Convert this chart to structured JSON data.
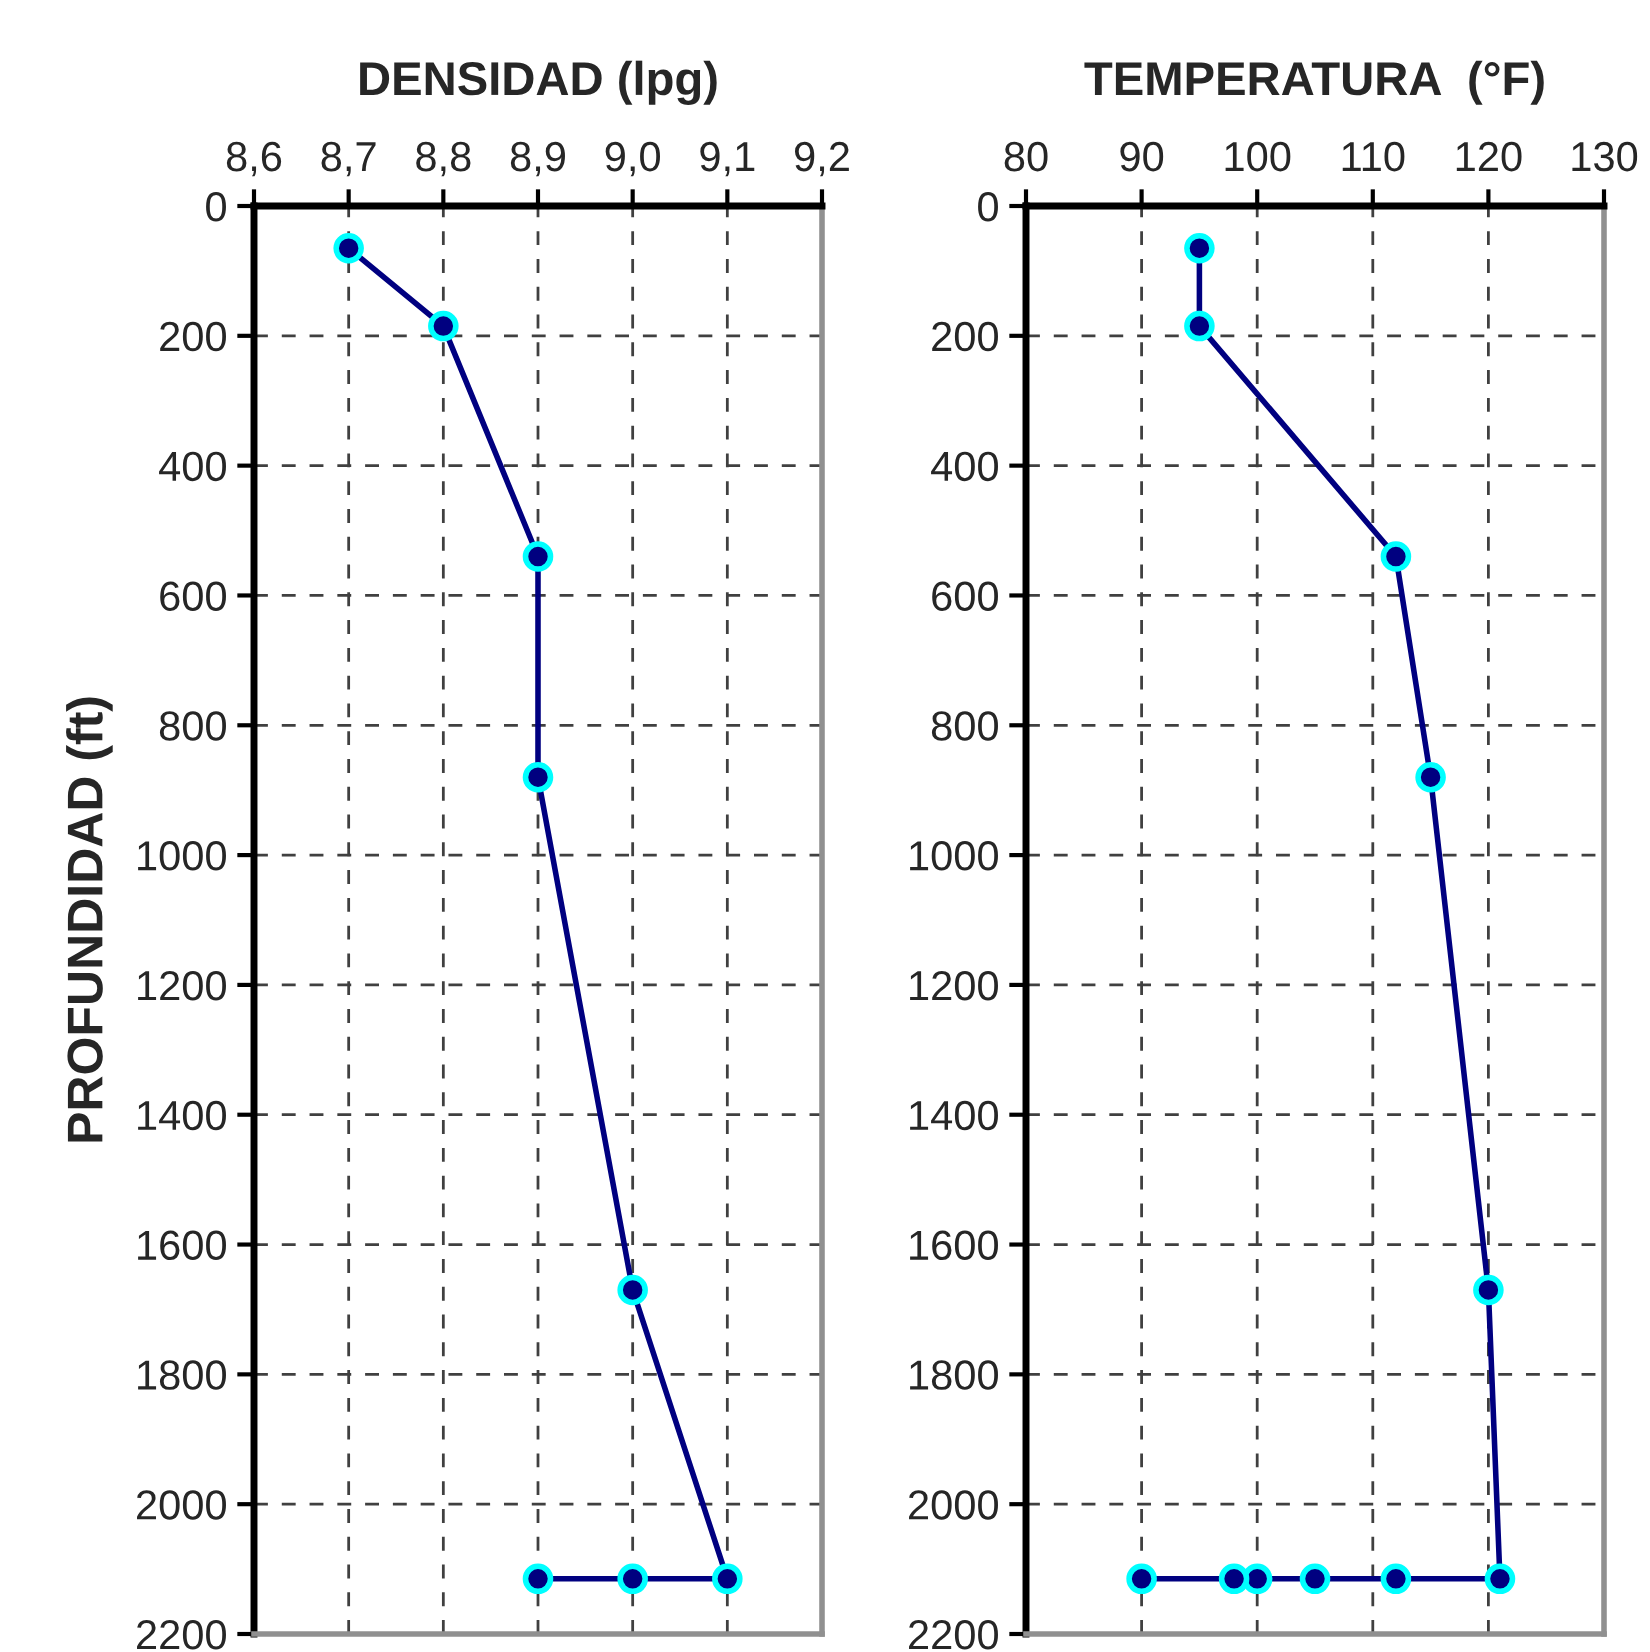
{
  "chart_data": [
    {
      "type": "line",
      "title": "DENSIDAD (lpg)",
      "ylabel": "PROFUNDIDAD (ft)",
      "series": [
        {
          "color": "#000080",
          "x": [
            8.7,
            8.8,
            8.9,
            8.9,
            9.0,
            9.1,
            9.0,
            8.9
          ],
          "values": [
            65,
            185,
            540,
            880,
            1670,
            2115,
            2115,
            2115
          ]
        }
      ],
      "xlim": [
        8.6,
        9.2
      ],
      "xticks": [
        {
          "value": 8.6,
          "label": "8,6"
        },
        {
          "value": 8.7,
          "label": "8,7"
        },
        {
          "value": 8.8,
          "label": "8,8"
        },
        {
          "value": 8.9,
          "label": "8,9"
        },
        {
          "value": 9.0,
          "label": "9,0"
        },
        {
          "value": 9.1,
          "label": "9,1"
        },
        {
          "value": 9.2,
          "label": "9,2"
        }
      ],
      "ylim": [
        2200,
        0
      ],
      "yticks": [
        0,
        200,
        400,
        600,
        800,
        1000,
        1200,
        1400,
        1600,
        1800,
        2000,
        2200
      ],
      "grid": true,
      "marker": "circle",
      "line_style": "solid"
    },
    {
      "type": "line",
      "title": "TEMPERATURA  (°F)",
      "series": [
        {
          "color": "#000080",
          "x": [
            95,
            95,
            112,
            115,
            120,
            121,
            112,
            105,
            100,
            98,
            90
          ],
          "values": [
            65,
            185,
            540,
            880,
            1670,
            2115,
            2115,
            2115,
            2115,
            2115,
            2115
          ]
        }
      ],
      "xlim": [
        80,
        130
      ],
      "xticks": [
        80,
        90,
        100,
        110,
        120,
        130
      ],
      "ylim": [
        2200,
        0
      ],
      "yticks": [
        0,
        200,
        400,
        600,
        800,
        1000,
        1200,
        1400,
        1600,
        1800,
        2000,
        2200
      ],
      "grid": true,
      "marker": "circle",
      "line_style": "solid"
    }
  ]
}
